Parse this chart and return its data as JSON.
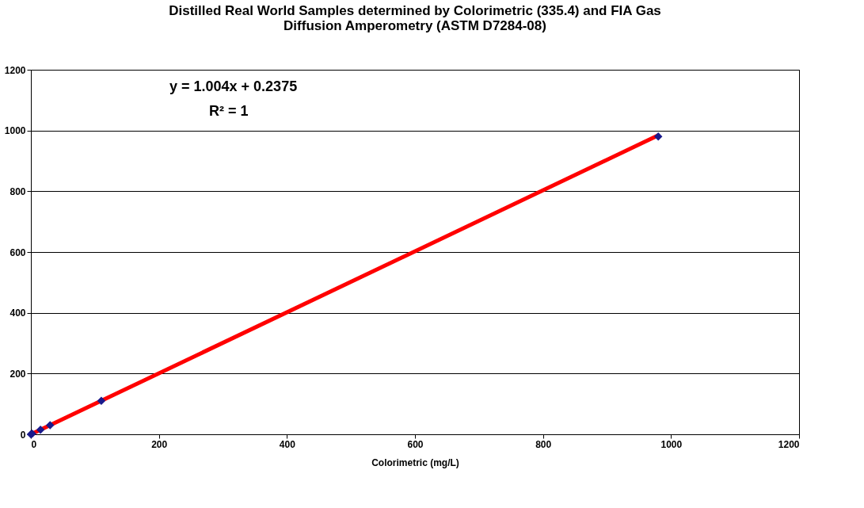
{
  "chart_data": {
    "type": "scatter",
    "title": [
      "Distilled Real World Samples determined by Colorimetric (335.4) and FIA Gas",
      "Diffusion Amperometry (ASTM D7284-08)"
    ],
    "xlabel": "Colorimetric (mg/L)",
    "series": [
      {
        "type": "line",
        "color": "#ff0000",
        "marker": "none",
        "line_style": "solid",
        "x": [
          2,
          980
        ],
        "values": [
          2,
          984
        ]
      },
      {
        "color": "#1a1a8c",
        "marker": "diamond",
        "x": [
          0,
          2,
          15,
          30,
          110,
          980
        ],
        "values": [
          0,
          2,
          15,
          30,
          110,
          980
        ]
      }
    ],
    "annotations": [
      "y = 1.004x + 0.2375",
      "R² = 1"
    ],
    "xlim": [
      0,
      1200
    ],
    "xticks": [
      0,
      200,
      400,
      600,
      800,
      1000,
      1200
    ],
    "ylim": [
      0,
      1200
    ],
    "yticks": [
      0,
      200,
      400,
      600,
      800,
      1000,
      1200
    ],
    "grid": "y"
  }
}
